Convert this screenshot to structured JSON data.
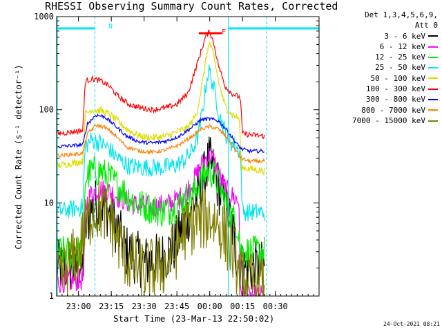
{
  "chart_data": {
    "type": "line",
    "title": "RHESSI Observing Summary Count Rates, Corrected",
    "xlabel": "Start Time (23-Mar-13 22:50:02)",
    "ylabel": "Corrected Count Rate (s⁻¹ detector⁻¹)",
    "yscale": "log",
    "ylim": [
      1,
      1000
    ],
    "xlim_minutes_from_start": [
      0,
      120
    ],
    "x_ticks": [
      {
        "label": "23:00",
        "min": 10
      },
      {
        "label": "23:15",
        "min": 25
      },
      {
        "label": "23:30",
        "min": 40
      },
      {
        "label": "23:45",
        "min": 55
      },
      {
        "label": "00:00",
        "min": 70
      },
      {
        "label": "00:15",
        "min": 85
      },
      {
        "label": "00:30",
        "min": 100
      }
    ],
    "y_ticks": [
      {
        "label": "1",
        "value": 1
      },
      {
        "label": "10",
        "value": 10
      },
      {
        "label": "100",
        "value": 100
      },
      {
        "label": "1000",
        "value": 1000
      }
    ],
    "legend_header": [
      "Det 1,3,4,5,6,9,",
      "Att 0"
    ],
    "annotations": {
      "night_label": "N",
      "flare_label": "F",
      "timestamp": "24-Oct-2021 08:21",
      "colors": {
        "night": "#00e5ee",
        "flare": "#ff0000"
      }
    },
    "series": [
      {
        "name": "3 - 6 keV",
        "color": "#000000",
        "noise": 0.6,
        "points": [
          [
            0,
            2
          ],
          [
            12,
            2
          ],
          [
            13,
            5
          ],
          [
            16,
            9
          ],
          [
            20,
            10
          ],
          [
            24,
            8
          ],
          [
            28,
            5
          ],
          [
            32,
            3
          ],
          [
            40,
            2.3
          ],
          [
            48,
            2.5
          ],
          [
            54,
            3.5
          ],
          [
            58,
            5.5
          ],
          [
            62,
            9
          ],
          [
            66,
            15
          ],
          [
            68,
            20
          ],
          [
            69.5,
            28
          ],
          [
            71,
            24
          ],
          [
            74,
            15
          ],
          [
            77,
            9
          ],
          [
            80,
            6
          ],
          [
            82,
            3
          ],
          [
            83.5,
            2
          ],
          [
            92,
            2
          ],
          [
            95,
            2
          ]
        ]
      },
      {
        "name": "6 - 12 keV",
        "color": "#ff00ff",
        "noise": 0.25,
        "points": [
          [
            0,
            1.4
          ],
          [
            12,
            1.5
          ],
          [
            13,
            9
          ],
          [
            16,
            13
          ],
          [
            20,
            14
          ],
          [
            25,
            13
          ],
          [
            30,
            11
          ],
          [
            36,
            9.5
          ],
          [
            44,
            9
          ],
          [
            50,
            9.5
          ],
          [
            56,
            11
          ],
          [
            62,
            16
          ],
          [
            66,
            25
          ],
          [
            68,
            30
          ],
          [
            70,
            32
          ],
          [
            72,
            28
          ],
          [
            75,
            18
          ],
          [
            78,
            13
          ],
          [
            82,
            11
          ],
          [
            83.5,
            10
          ],
          [
            84,
            1
          ],
          [
            95,
            1
          ]
        ]
      },
      {
        "name": "12 - 25 keV",
        "color": "#00ee00",
        "noise": 0.35,
        "points": [
          [
            0,
            3
          ],
          [
            12,
            3
          ],
          [
            13,
            18
          ],
          [
            16,
            22
          ],
          [
            20,
            22
          ],
          [
            25,
            18
          ],
          [
            30,
            14
          ],
          [
            36,
            10
          ],
          [
            42,
            9
          ],
          [
            48,
            8
          ],
          [
            52,
            8.5
          ],
          [
            56,
            10
          ],
          [
            62,
            12
          ],
          [
            66,
            17
          ],
          [
            68,
            21
          ],
          [
            70,
            22
          ],
          [
            72,
            20
          ],
          [
            75,
            14
          ],
          [
            78,
            9
          ],
          [
            82,
            6
          ],
          [
            83.5,
            5
          ],
          [
            84,
            3
          ],
          [
            95,
            3
          ]
        ]
      },
      {
        "name": "25 - 50 keV",
        "color": "#00e5ee",
        "noise": 0.2,
        "points": [
          [
            0,
            8
          ],
          [
            12,
            9
          ],
          [
            13,
            40
          ],
          [
            16,
            48
          ],
          [
            20,
            44
          ],
          [
            24,
            38
          ],
          [
            28,
            30
          ],
          [
            33,
            25
          ],
          [
            40,
            24
          ],
          [
            48,
            24
          ],
          [
            54,
            25
          ],
          [
            58,
            28
          ],
          [
            62,
            36
          ],
          [
            65,
            55
          ],
          [
            67,
            110
          ],
          [
            69,
            240
          ],
          [
            70,
            260
          ],
          [
            72,
            160
          ],
          [
            75,
            80
          ],
          [
            78,
            50
          ],
          [
            82,
            40
          ],
          [
            84,
            35
          ],
          [
            85,
            8
          ],
          [
            95,
            8
          ]
        ]
      },
      {
        "name": "50 - 100 keV",
        "color": "#dddd00",
        "noise": 0.08,
        "points": [
          [
            0,
            25
          ],
          [
            12,
            28
          ],
          [
            13,
            90
          ],
          [
            16,
            100
          ],
          [
            20,
            98
          ],
          [
            24,
            90
          ],
          [
            28,
            75
          ],
          [
            33,
            60
          ],
          [
            38,
            52
          ],
          [
            44,
            50
          ],
          [
            50,
            52
          ],
          [
            55,
            58
          ],
          [
            60,
            64
          ],
          [
            64,
            90
          ],
          [
            67,
            220
          ],
          [
            69,
            450
          ],
          [
            70,
            520
          ],
          [
            72,
            360
          ],
          [
            74,
            200
          ],
          [
            77,
            110
          ],
          [
            80,
            90
          ],
          [
            83.5,
            80
          ],
          [
            84.5,
            24
          ],
          [
            95,
            22
          ]
        ]
      },
      {
        "name": "100 - 300 keV",
        "color": "#ff0000",
        "noise": 0.06,
        "points": [
          [
            0,
            55
          ],
          [
            12,
            60
          ],
          [
            13,
            200
          ],
          [
            16,
            215
          ],
          [
            20,
            205
          ],
          [
            24,
            180
          ],
          [
            28,
            140
          ],
          [
            33,
            115
          ],
          [
            38,
            105
          ],
          [
            44,
            100
          ],
          [
            50,
            105
          ],
          [
            55,
            115
          ],
          [
            60,
            150
          ],
          [
            63,
            250
          ],
          [
            66,
            420
          ],
          [
            68,
            600
          ],
          [
            70,
            700
          ],
          [
            72,
            500
          ],
          [
            74,
            300
          ],
          [
            77,
            180
          ],
          [
            80,
            150
          ],
          [
            84,
            135
          ],
          [
            85,
            55
          ],
          [
            95,
            52
          ]
        ]
      },
      {
        "name": "300 - 800 keV",
        "color": "#0000ff",
        "noise": 0.04,
        "points": [
          [
            0,
            40
          ],
          [
            12,
            42
          ],
          [
            14,
            70
          ],
          [
            18,
            88
          ],
          [
            22,
            84
          ],
          [
            26,
            70
          ],
          [
            32,
            52
          ],
          [
            38,
            45
          ],
          [
            44,
            44
          ],
          [
            50,
            46
          ],
          [
            56,
            52
          ],
          [
            62,
            65
          ],
          [
            66,
            78
          ],
          [
            70,
            80
          ],
          [
            74,
            76
          ],
          [
            78,
            60
          ],
          [
            82,
            44
          ],
          [
            84.5,
            38
          ],
          [
            88,
            36
          ],
          [
            95,
            36
          ]
        ]
      },
      {
        "name": "800 - 7000 keV",
        "color": "#ff8000",
        "noise": 0.04,
        "points": [
          [
            0,
            32
          ],
          [
            12,
            34
          ],
          [
            14,
            55
          ],
          [
            18,
            68
          ],
          [
            22,
            65
          ],
          [
            26,
            55
          ],
          [
            32,
            40
          ],
          [
            38,
            36
          ],
          [
            44,
            35
          ],
          [
            50,
            37
          ],
          [
            56,
            42
          ],
          [
            62,
            52
          ],
          [
            66,
            62
          ],
          [
            70,
            66
          ],
          [
            74,
            62
          ],
          [
            78,
            50
          ],
          [
            82,
            36
          ],
          [
            84.5,
            30
          ],
          [
            88,
            28
          ],
          [
            95,
            28
          ]
        ]
      },
      {
        "name": "7000 - 15000 keV",
        "color": "#808000",
        "noise": 0.7,
        "points": [
          [
            0,
            1.3
          ],
          [
            5,
            2
          ],
          [
            10,
            3
          ],
          [
            13,
            5
          ],
          [
            16,
            8
          ],
          [
            20,
            8.5
          ],
          [
            24,
            7
          ],
          [
            28,
            4
          ],
          [
            32,
            2.5
          ],
          [
            40,
            1.8
          ],
          [
            50,
            2.2
          ],
          [
            54,
            3
          ],
          [
            58,
            5
          ],
          [
            62,
            6
          ],
          [
            66,
            6.5
          ],
          [
            70,
            7
          ],
          [
            74,
            6
          ],
          [
            78,
            4
          ],
          [
            82,
            2.5
          ],
          [
            83.5,
            1.5
          ],
          [
            95,
            1.2
          ]
        ]
      }
    ]
  }
}
